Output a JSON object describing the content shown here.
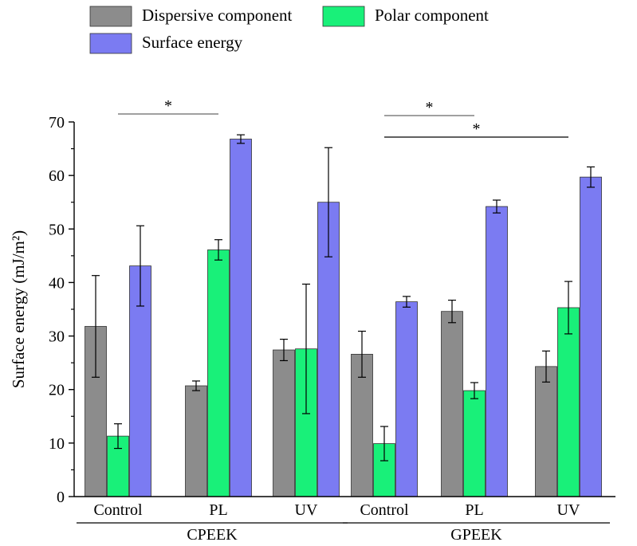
{
  "chart_data": {
    "type": "bar",
    "ylabel": "Surface energy (mJ/m²)",
    "ylim": [
      0,
      70
    ],
    "yticks": [
      0,
      10,
      20,
      30,
      40,
      50,
      60,
      70
    ],
    "legend_placement": "top-left",
    "categories": [
      "Control",
      "PL",
      "UV",
      "Control",
      "PL",
      "UV"
    ],
    "groups": [
      {
        "name": "CPEEK",
        "span": [
          0,
          2
        ]
      },
      {
        "name": "GPEEK",
        "span": [
          3,
          5
        ]
      }
    ],
    "series": [
      {
        "name": "Dispersive component",
        "color": "#8c8c8c",
        "values": [
          31.8,
          20.7,
          27.4,
          26.6,
          34.6,
          24.3
        ],
        "errors": [
          9.5,
          0.9,
          2.0,
          4.3,
          2.1,
          2.9
        ]
      },
      {
        "name": "Polar component",
        "color": "#19f079",
        "values": [
          11.3,
          46.1,
          27.6,
          9.9,
          19.8,
          35.3
        ],
        "errors": [
          2.3,
          1.9,
          12.1,
          3.2,
          1.5,
          4.9
        ]
      },
      {
        "name": "Surface energy",
        "color": "#7b7bf2",
        "values": [
          43.1,
          66.8,
          55.0,
          36.4,
          54.2,
          59.7
        ],
        "errors": [
          7.5,
          0.8,
          10.2,
          1.0,
          1.2,
          1.9
        ]
      }
    ],
    "significance": [
      {
        "from": 0,
        "to": 1,
        "label": "*"
      },
      {
        "from": 3,
        "to": 4,
        "label": "*"
      },
      {
        "from": 3,
        "to": 5,
        "label": "*"
      }
    ]
  }
}
